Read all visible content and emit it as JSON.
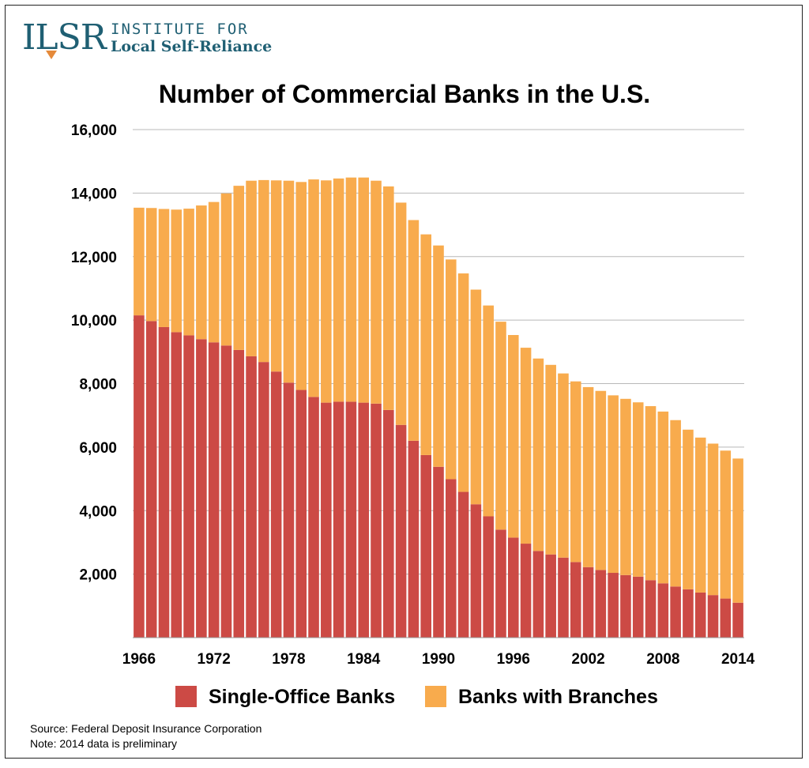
{
  "logo": {
    "mark": "ILSR",
    "line1": "INSTITUTE FOR",
    "line2": "Local Self-Reliance"
  },
  "source_note": "Source: Federal Deposit Insurance Corporation",
  "data_note": "Note: 2014 data is preliminary",
  "chart_data": {
    "type": "bar",
    "stacked": true,
    "title": "Number of Commercial Banks in the U.S.",
    "xlabel": "",
    "ylabel": "",
    "ylim": [
      0,
      16000
    ],
    "yticks": [
      2000,
      4000,
      6000,
      8000,
      10000,
      12000,
      14000,
      16000
    ],
    "ytick_labels": [
      "2,000",
      "4,000",
      "6,000",
      "8,000",
      "10,000",
      "12,000",
      "14,000",
      "16,000"
    ],
    "grid": true,
    "legend_position": "bottom",
    "categories": [
      "1966",
      "1967",
      "1968",
      "1969",
      "1970",
      "1971",
      "1972",
      "1973",
      "1974",
      "1975",
      "1976",
      "1977",
      "1978",
      "1979",
      "1980",
      "1981",
      "1982",
      "1983",
      "1984",
      "1985",
      "1986",
      "1987",
      "1988",
      "1989",
      "1990",
      "1991",
      "1992",
      "1993",
      "1994",
      "1995",
      "1996",
      "1997",
      "1998",
      "1999",
      "2000",
      "2001",
      "2002",
      "2003",
      "2004",
      "2005",
      "2006",
      "2007",
      "2008",
      "2009",
      "2010",
      "2011",
      "2012",
      "2013",
      "2014"
    ],
    "xtick_labels": [
      "1966",
      "1972",
      "1978",
      "1984",
      "1990",
      "1996",
      "2002",
      "2008",
      "2014"
    ],
    "series": [
      {
        "name": "Single-Office Banks",
        "color": "#cc4a45",
        "values": [
          10150,
          9970,
          9780,
          9620,
          9520,
          9400,
          9300,
          9200,
          9060,
          8860,
          8680,
          8380,
          8030,
          7800,
          7580,
          7400,
          7430,
          7430,
          7400,
          7370,
          7170,
          6700,
          6200,
          5750,
          5380,
          4990,
          4590,
          4200,
          3820,
          3400,
          3150,
          2960,
          2730,
          2620,
          2520,
          2380,
          2220,
          2130,
          2040,
          1970,
          1920,
          1810,
          1710,
          1610,
          1520,
          1420,
          1340,
          1230,
          1100
        ]
      },
      {
        "name": "Banks with Branches",
        "color": "#f8ab4d",
        "values": [
          3390,
          3560,
          3720,
          3860,
          3990,
          4210,
          4420,
          4790,
          5170,
          5530,
          5730,
          6020,
          6360,
          6550,
          6850,
          7000,
          7030,
          7060,
          7090,
          7020,
          7040,
          7000,
          6950,
          6950,
          6970,
          6920,
          6880,
          6760,
          6640,
          6550,
          6380,
          6170,
          6060,
          5970,
          5800,
          5690,
          5670,
          5640,
          5590,
          5550,
          5490,
          5480,
          5410,
          5240,
          5030,
          4880,
          4770,
          4660,
          4540
        ]
      }
    ]
  }
}
